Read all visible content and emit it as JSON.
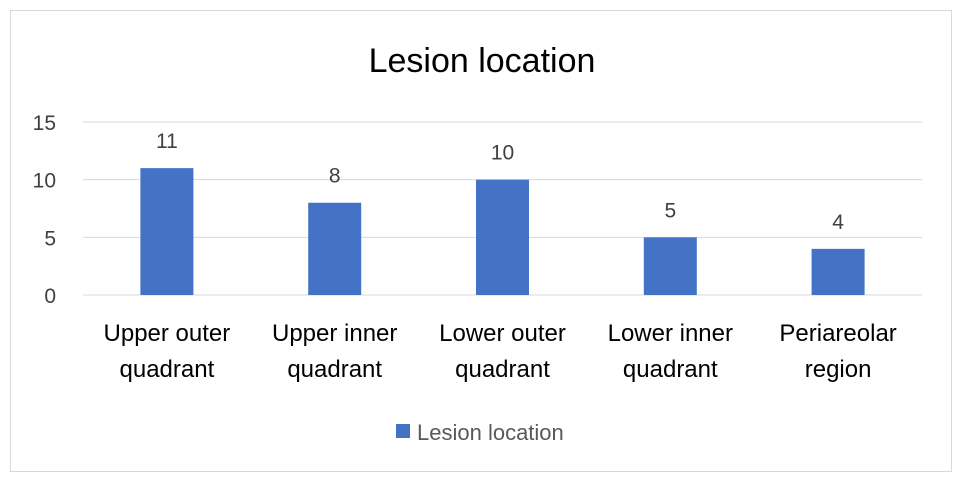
{
  "chart_data": {
    "type": "bar",
    "title": "Lesion location",
    "categories": [
      [
        "Upper outer",
        "quadrant"
      ],
      [
        "Upper inner",
        "quadrant"
      ],
      [
        "Lower outer",
        "quadrant"
      ],
      [
        "Lower inner",
        "quadrant"
      ],
      [
        "Periareolar",
        "region"
      ]
    ],
    "series": [
      {
        "name": "Lesion location",
        "values": [
          11,
          8,
          10,
          5,
          4
        ],
        "color": "#4472C4"
      }
    ],
    "ylim": [
      0,
      15
    ],
    "yticks": [
      "0",
      "5",
      "10",
      "15"
    ],
    "data_labels": [
      "11",
      "8",
      "10",
      "5",
      "4"
    ],
    "grid": true,
    "legend_position": "bottom"
  }
}
